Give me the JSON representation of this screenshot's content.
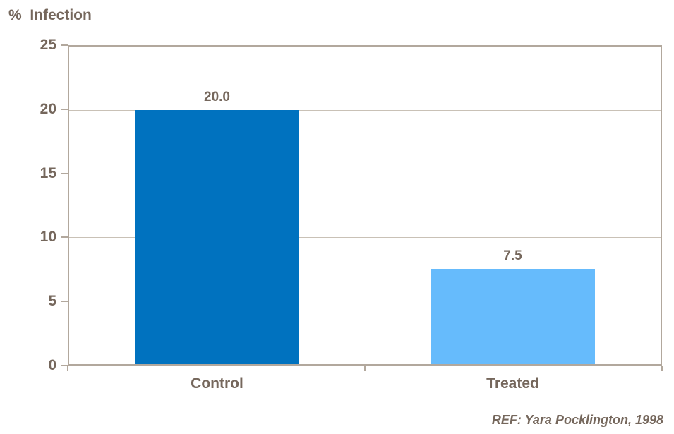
{
  "header": {
    "title": "%  Infection"
  },
  "footer": {
    "reference": "REF: Yara Pocklington, 1998"
  },
  "colors": {
    "text": "#75675c",
    "axis": "#b2a89d",
    "gridline": "#c9c1b6",
    "bars": [
      "#0072bf",
      "#66bbfc"
    ]
  },
  "chart_data": {
    "type": "bar",
    "title": "% Infection",
    "categories": [
      "Control",
      "Treated"
    ],
    "values": [
      20.0,
      7.5
    ],
    "value_labels": [
      "20.0",
      "7.5"
    ],
    "series": [
      {
        "name": "% Infection",
        "values": [
          20.0,
          7.5
        ]
      }
    ],
    "xlabel": "",
    "ylabel": "% Infection",
    "ylim": [
      0,
      25
    ],
    "yticks": [
      0,
      5,
      10,
      15,
      20,
      25
    ],
    "grid": true,
    "legend": "none",
    "bar_colors": [
      "#0072bf",
      "#66bbfc"
    ],
    "annotation": "REF: Yara Pocklington, 1998"
  }
}
